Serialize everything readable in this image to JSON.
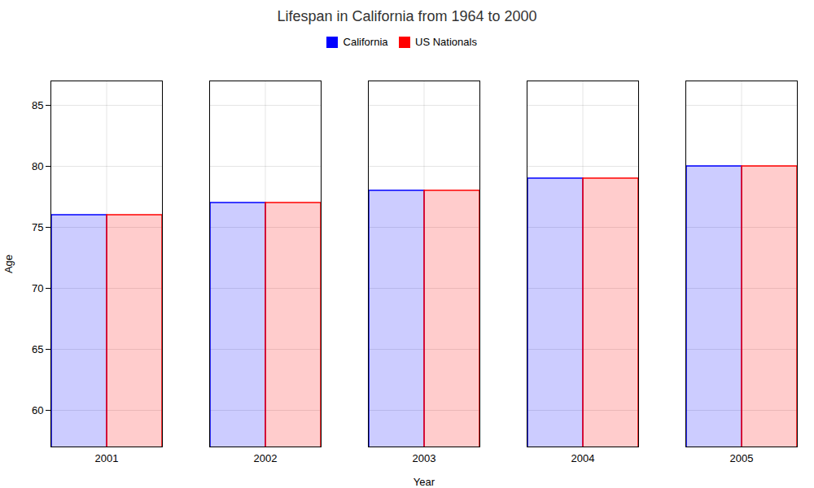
{
  "chart_data": {
    "type": "bar",
    "title": "Lifespan in California from 1964 to 2000",
    "xlabel": "Year",
    "ylabel": "Age",
    "categories": [
      "2001",
      "2002",
      "2003",
      "2004",
      "2005"
    ],
    "series": [
      {
        "name": "California",
        "color": "#0000ff",
        "values": [
          76,
          77,
          78,
          79,
          80
        ]
      },
      {
        "name": "US Nationals",
        "color": "#ff0000",
        "values": [
          76,
          77,
          78,
          79,
          80
        ]
      }
    ],
    "ylim": [
      57,
      87
    ],
    "yticks": [
      60,
      65,
      70,
      75,
      80,
      85
    ],
    "grid": true,
    "legend": "top"
  }
}
